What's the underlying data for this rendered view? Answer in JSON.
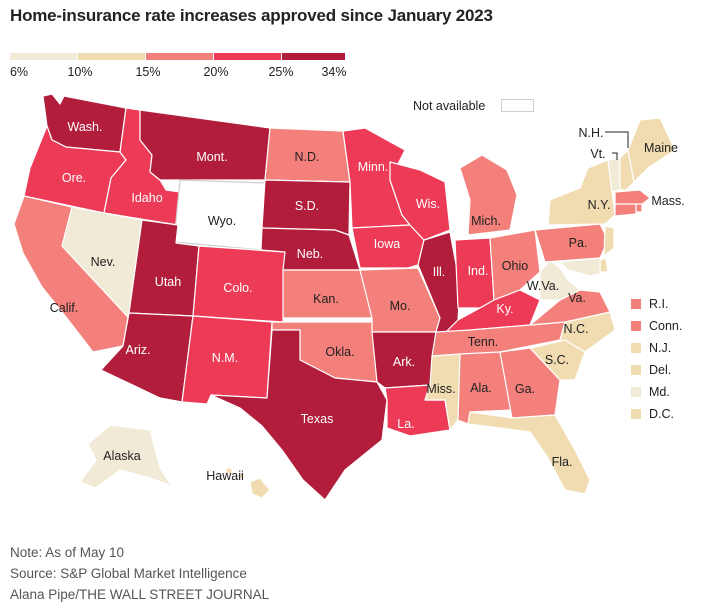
{
  "title": "Home-insurance rate increases approved since January 2023",
  "legend": {
    "bins": [
      {
        "label": "6%",
        "color": "#f1ead7"
      },
      {
        "label": "10%",
        "color": "#f0dcb0"
      },
      {
        "label": "15%",
        "color": "#f3807a"
      },
      {
        "label": "20%",
        "color": "#ed3a56"
      },
      {
        "label": "25%",
        "color": "#c01c3b"
      },
      {
        "label": "34%",
        "color": ""
      }
    ],
    "not_available": "Not available"
  },
  "states": {
    "wash": {
      "label": "Wash.",
      "color": "#b11d3b"
    },
    "ore": {
      "label": "Ore.",
      "color": "#ed3a56"
    },
    "calif": {
      "label": "Calif.",
      "color": "#f3807a"
    },
    "idaho": {
      "label": "Idaho",
      "color": "#ed3a56"
    },
    "nev": {
      "label": "Nev.",
      "color": "#f1ead7"
    },
    "mont": {
      "label": "Mont.",
      "color": "#b11d3b"
    },
    "wyo": {
      "label": "Wyo.",
      "color": "#ffffff"
    },
    "utah": {
      "label": "Utah",
      "color": "#b11d3b"
    },
    "ariz": {
      "label": "Ariz.",
      "color": "#b11d3b"
    },
    "colo": {
      "label": "Colo.",
      "color": "#ed3a56"
    },
    "nm": {
      "label": "N.M.",
      "color": "#ed3a56"
    },
    "nd": {
      "label": "N.D.",
      "color": "#f3807a"
    },
    "sd": {
      "label": "S.D.",
      "color": "#b11d3b"
    },
    "neb": {
      "label": "Neb.",
      "color": "#b11d3b"
    },
    "kan": {
      "label": "Kan.",
      "color": "#f3807a"
    },
    "okla": {
      "label": "Okla.",
      "color": "#f3807a"
    },
    "texas": {
      "label": "Texas",
      "color": "#b11d3b"
    },
    "minn": {
      "label": "Minn.",
      "color": "#ed3a56"
    },
    "iowa": {
      "label": "Iowa",
      "color": "#ed3a56"
    },
    "mo": {
      "label": "Mo.",
      "color": "#f3807a"
    },
    "ark": {
      "label": "Ark.",
      "color": "#b11d3b"
    },
    "la": {
      "label": "La.",
      "color": "#ed3a56"
    },
    "wis": {
      "label": "Wis.",
      "color": "#ed3a56"
    },
    "ill": {
      "label": "Ill.",
      "color": "#b11d3b"
    },
    "mich": {
      "label": "Mich.",
      "color": "#f3807a"
    },
    "ind": {
      "label": "Ind.",
      "color": "#ed3a56"
    },
    "ohio": {
      "label": "Ohio",
      "color": "#f3807a"
    },
    "ky": {
      "label": "Ky.",
      "color": "#ed3a56"
    },
    "tenn": {
      "label": "Tenn.",
      "color": "#f3807a"
    },
    "miss": {
      "label": "Miss.",
      "color": "#f0dcb0"
    },
    "ala": {
      "label": "Ala.",
      "color": "#f3807a"
    },
    "ga": {
      "label": "Ga.",
      "color": "#f3807a"
    },
    "fla": {
      "label": "Fla.",
      "color": "#f0dcb0"
    },
    "sc": {
      "label": "S.C.",
      "color": "#f0dcb0"
    },
    "nc": {
      "label": "N.C.",
      "color": "#f0dcb0"
    },
    "va": {
      "label": "Va.",
      "color": "#f3807a"
    },
    "wva": {
      "label": "W.Va.",
      "color": "#f1ead7"
    },
    "pa": {
      "label": "Pa.",
      "color": "#f3807a"
    },
    "ny": {
      "label": "N.Y.",
      "color": "#f0dcb0"
    },
    "vt": {
      "label": "Vt.",
      "color": "#f1ead7"
    },
    "nh": {
      "label": "N.H.",
      "color": "#f0dcb0"
    },
    "maine": {
      "label": "Maine",
      "color": "#f0dcb0"
    },
    "mass": {
      "label": "Mass.",
      "color": "#f3807a"
    },
    "alaska": {
      "label": "Alaska",
      "color": "#f1ead7"
    },
    "hawaii": {
      "label": "Hawaii",
      "color": "#f0dcb0"
    }
  },
  "small_states": [
    {
      "label": "R.I.",
      "color": "#f3807a"
    },
    {
      "label": "Conn.",
      "color": "#f3807a"
    },
    {
      "label": "N.J.",
      "color": "#f0dcb0"
    },
    {
      "label": "Del.",
      "color": "#f0dcb0"
    },
    {
      "label": "Md.",
      "color": "#f1ead7"
    },
    {
      "label": "D.C.",
      "color": "#f0dcb0"
    }
  ],
  "footer": {
    "note": "Note: As of May 10",
    "source": "Source: S&P Global Market Intelligence",
    "credit": "Alana Pipe/THE WALL STREET JOURNAL"
  }
}
